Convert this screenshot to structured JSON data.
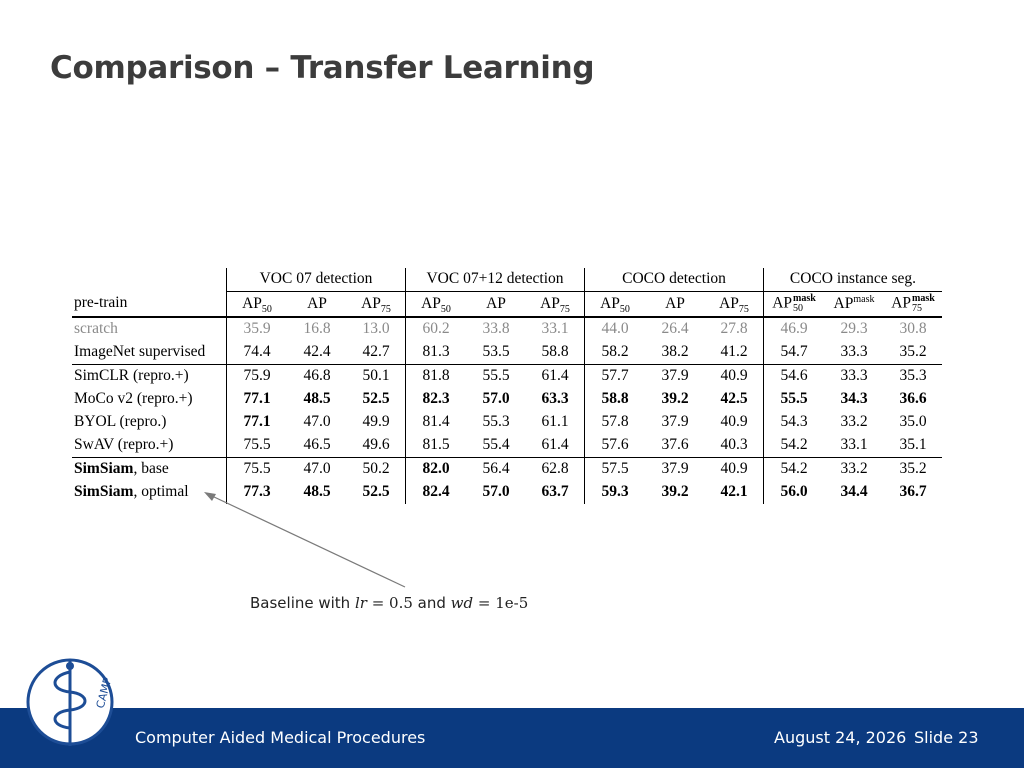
{
  "slide": {
    "title": "Comparison – Transfer Learning",
    "footer_org": "Computer Aided Medical Procedures",
    "footer_date": "August 24, 2026",
    "footer_slide": "Slide 23",
    "logo_text": "CAMP",
    "annotation": {
      "prefix": "Baseline with ",
      "lr_var": "lr",
      "lr_eq": " = 0.5",
      "and": " and ",
      "wd_var": "wd",
      "wd_eq": " = 1e-5"
    }
  },
  "table": {
    "pretrain_header": "pre-train",
    "groups": [
      "VOC 07 detection",
      "VOC 07+12 detection",
      "COCO detection",
      "COCO instance seg."
    ],
    "ap_label": "AP",
    "sub50": "50",
    "sub75": "75",
    "mask": "mask",
    "rows": [
      {
        "name": "scratch",
        "values": [
          "35.9",
          "16.8",
          "13.0",
          "60.2",
          "33.8",
          "33.1",
          "44.0",
          "26.4",
          "27.8",
          "46.9",
          "29.3",
          "30.8"
        ],
        "bold": []
      },
      {
        "name": "ImageNet supervised",
        "values": [
          "74.4",
          "42.4",
          "42.7",
          "81.3",
          "53.5",
          "58.8",
          "58.2",
          "38.2",
          "41.2",
          "54.7",
          "33.3",
          "35.2"
        ],
        "bold": []
      },
      {
        "name": "SimCLR (repro.+)",
        "values": [
          "75.9",
          "46.8",
          "50.1",
          "81.8",
          "55.5",
          "61.4",
          "57.7",
          "37.9",
          "40.9",
          "54.6",
          "33.3",
          "35.3"
        ],
        "bold": []
      },
      {
        "name": "MoCo v2 (repro.+)",
        "values": [
          "77.1",
          "48.5",
          "52.5",
          "82.3",
          "57.0",
          "63.3",
          "58.8",
          "39.2",
          "42.5",
          "55.5",
          "34.3",
          "36.6"
        ],
        "bold": [
          0,
          1,
          2,
          3,
          4,
          5,
          6,
          7,
          8,
          9,
          10,
          11
        ]
      },
      {
        "name": "BYOL (repro.)",
        "values": [
          "77.1",
          "47.0",
          "49.9",
          "81.4",
          "55.3",
          "61.1",
          "57.8",
          "37.9",
          "40.9",
          "54.3",
          "33.2",
          "35.0"
        ],
        "bold": [
          0
        ]
      },
      {
        "name": "SwAV (repro.+)",
        "values": [
          "75.5",
          "46.5",
          "49.6",
          "81.5",
          "55.4",
          "61.4",
          "57.6",
          "37.6",
          "40.3",
          "54.2",
          "33.1",
          "35.1"
        ],
        "bold": []
      },
      {
        "name_bold": "SimSiam",
        "name_rest": ", base",
        "values": [
          "75.5",
          "47.0",
          "50.2",
          "82.0",
          "56.4",
          "62.8",
          "57.5",
          "37.9",
          "40.9",
          "54.2",
          "33.2",
          "35.2"
        ],
        "bold": [
          3
        ]
      },
      {
        "name_bold": "SimSiam",
        "name_rest": ", optimal",
        "values": [
          "77.3",
          "48.5",
          "52.5",
          "82.4",
          "57.0",
          "63.7",
          "59.3",
          "39.2",
          "42.1",
          "56.0",
          "34.4",
          "36.7"
        ],
        "bold": [
          0,
          1,
          2,
          3,
          4,
          5,
          6,
          7,
          8,
          9,
          10,
          11
        ]
      }
    ]
  },
  "colors": {
    "footer_bg": "#0b3a80",
    "title": "#3c3c3c",
    "scratch_gray": "#8a8a8a",
    "logo_stroke": "#1d4d96"
  },
  "icons": {
    "logo": "camp-caduceus-logo",
    "arrow": "annotation-arrow"
  }
}
